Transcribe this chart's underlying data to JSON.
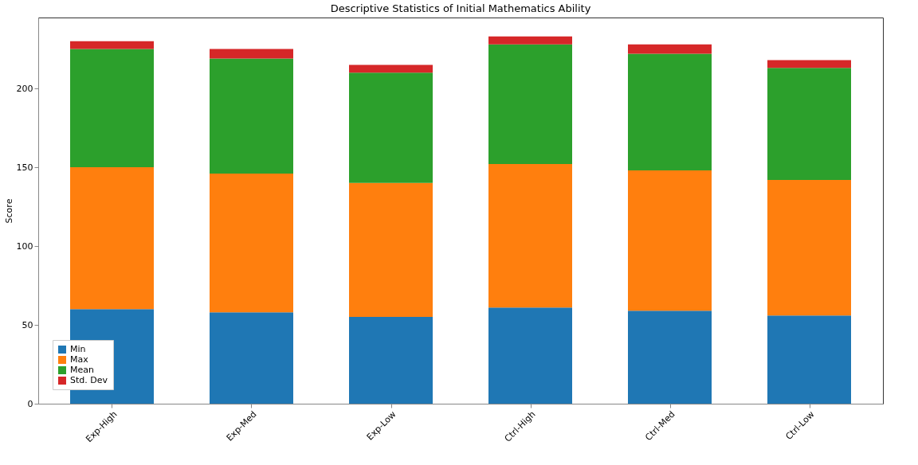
{
  "chart_data": {
    "type": "bar",
    "title": "Descriptive Statistics of Initial Mathematics Ability",
    "ylabel": "Score",
    "stacked": true,
    "legend": "bottom left",
    "grid": false,
    "categories": [
      "Exp-High",
      "Exp-Med",
      "Exp-Low",
      "Ctrl-High",
      "Ctrl-Med",
      "Ctrl-Low"
    ],
    "series": [
      {
        "name": "Min",
        "color": "#1f77b4",
        "values": [
          60,
          58,
          55,
          61,
          59,
          56
        ]
      },
      {
        "name": "Max",
        "color": "#ff7f0e",
        "values": [
          90,
          88,
          85,
          91,
          89,
          86
        ]
      },
      {
        "name": "Mean",
        "color": "#2ca02c",
        "values": [
          75,
          73,
          70,
          76,
          74,
          71
        ]
      },
      {
        "name": "Std. Dev",
        "color": "#d62728",
        "values": [
          5,
          6,
          5,
          5,
          6,
          5
        ]
      }
    ],
    "ylim": [
      0,
      245
    ],
    "yticks": [
      0,
      50,
      100,
      150,
      200
    ]
  }
}
